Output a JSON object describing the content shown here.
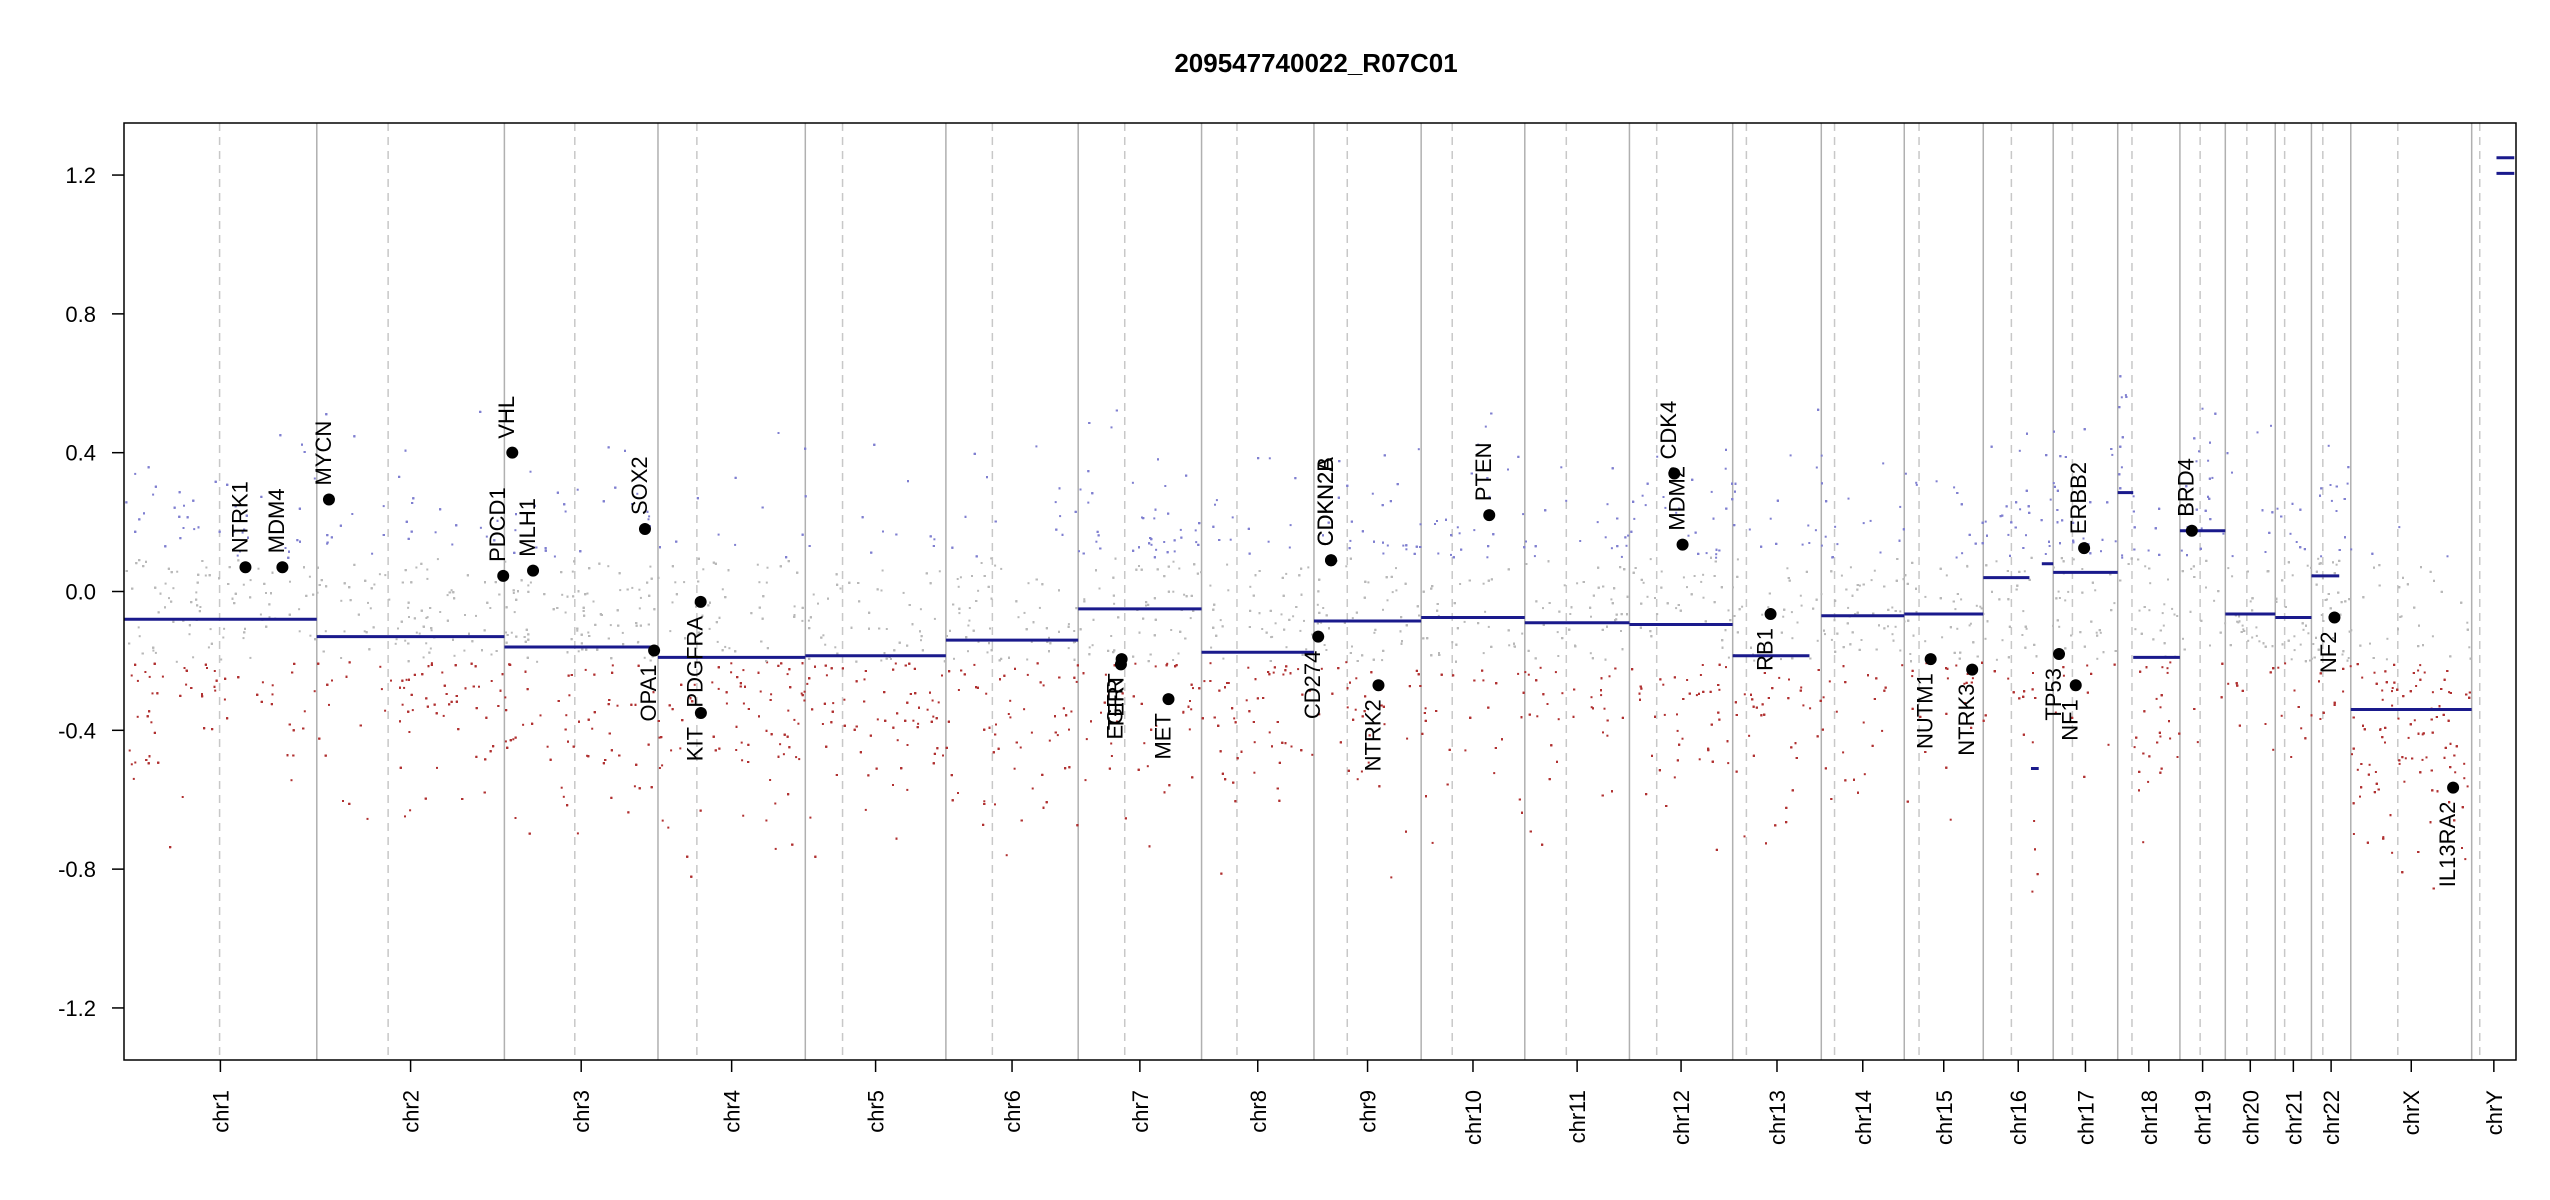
{
  "chart_data": {
    "type": "scatter",
    "title": "209547740022_R07C01",
    "xlabel": "",
    "ylabel": "",
    "ylim": [
      -1.35,
      1.35
    ],
    "yticks": [
      "-1.2",
      "-0.8",
      "-0.4",
      "0.0",
      "0.4",
      "0.8",
      "1.2"
    ],
    "grid": false,
    "colors": {
      "segment": "#1a1a8c",
      "gain_points": "#7f7fd0",
      "loss_points": "#b03030",
      "neutral_points": "#b8b8b8",
      "gene_marker": "#000000",
      "chrom_boundary": "#b0b0b0",
      "centromere": "#c8c8c8"
    },
    "chromosomes": [
      {
        "name": "chr1",
        "start": 0.0,
        "end": 248.9,
        "centromere": 123.4
      },
      {
        "name": "chr2",
        "start": 248.9,
        "end": 491.1,
        "centromere": 341.0
      },
      {
        "name": "chr3",
        "start": 491.1,
        "end": 689.4,
        "centromere": 582.0
      },
      {
        "name": "chr4",
        "start": 689.4,
        "end": 879.6,
        "centromere": 739.6
      },
      {
        "name": "chr5",
        "start": 879.6,
        "end": 1061.1,
        "centromere": 927.7
      },
      {
        "name": "chr6",
        "start": 1061.1,
        "end": 1231.9,
        "centromere": 1121.1
      },
      {
        "name": "chr7",
        "start": 1231.9,
        "end": 1391.2,
        "centromere": 1292.0
      },
      {
        "name": "chr8",
        "start": 1391.2,
        "end": 1536.3,
        "centromere": 1436.9
      },
      {
        "name": "chr9",
        "start": 1536.3,
        "end": 1674.7,
        "centromere": 1579.3
      },
      {
        "name": "chr10",
        "start": 1674.7,
        "end": 1808.5,
        "centromere": 1714.8
      },
      {
        "name": "chr11",
        "start": 1808.5,
        "end": 1943.6,
        "centromere": 1862.1
      },
      {
        "name": "chr12",
        "start": 1943.6,
        "end": 2076.9,
        "centromere": 1978.8
      },
      {
        "name": "chr13",
        "start": 2076.9,
        "end": 2191.3,
        "centromere": 2094.6
      },
      {
        "name": "chr14",
        "start": 2191.3,
        "end": 2298.4,
        "centromere": 2208.4
      },
      {
        "name": "chr15",
        "start": 2298.4,
        "end": 2400.4,
        "centromere": 2317.5
      },
      {
        "name": "chr16",
        "start": 2400.4,
        "end": 2490.7,
        "centromere": 2436.7
      },
      {
        "name": "chr17",
        "start": 2490.7,
        "end": 2574.0,
        "centromere": 2515.5
      },
      {
        "name": "chr18",
        "start": 2574.0,
        "end": 2654.3,
        "centromere": 2592.4
      },
      {
        "name": "chr19",
        "start": 2654.3,
        "end": 2712.9,
        "centromere": 2680.4
      },
      {
        "name": "chr20",
        "start": 2712.9,
        "end": 2777.4,
        "centromere": 2740.7
      },
      {
        "name": "chr21",
        "start": 2777.4,
        "end": 2824.1,
        "centromere": 2789.5
      },
      {
        "name": "chr22",
        "start": 2824.1,
        "end": 2874.9,
        "centromere": 2838.8
      },
      {
        "name": "chrX",
        "start": 2874.9,
        "end": 3031.0,
        "centromere": 2935.6
      },
      {
        "name": "chrY",
        "start": 3031.0,
        "end": 3088.2,
        "centromere": 3041.4
      }
    ],
    "segments": [
      {
        "x0": 0.0,
        "x1": 248.9,
        "y": -0.08
      },
      {
        "x0": 248.9,
        "x1": 491.1,
        "y": -0.13
      },
      {
        "x0": 491.1,
        "x1": 689.4,
        "y": -0.16
      },
      {
        "x0": 689.4,
        "x1": 879.6,
        "y": -0.19
      },
      {
        "x0": 879.6,
        "x1": 1061.1,
        "y": -0.185
      },
      {
        "x0": 1061.1,
        "x1": 1231.9,
        "y": -0.14
      },
      {
        "x0": 1231.9,
        "x1": 1391.2,
        "y": -0.05
      },
      {
        "x0": 1391.2,
        "x1": 1536.3,
        "y": -0.175
      },
      {
        "x0": 1536.3,
        "x1": 1674.7,
        "y": -0.085
      },
      {
        "x0": 1674.7,
        "x1": 1808.5,
        "y": -0.075
      },
      {
        "x0": 1808.5,
        "x1": 1943.6,
        "y": -0.09
      },
      {
        "x0": 1943.6,
        "x1": 2076.9,
        "y": -0.095
      },
      {
        "x0": 2076.9,
        "x1": 2176.0,
        "y": -0.185
      },
      {
        "x0": 2191.3,
        "x1": 2298.4,
        "y": -0.07
      },
      {
        "x0": 2298.4,
        "x1": 2400.4,
        "y": -0.065
      },
      {
        "x0": 2400.4,
        "x1": 2460.0,
        "y": 0.04
      },
      {
        "x0": 2462.0,
        "x1": 2472.0,
        "y": -0.51
      },
      {
        "x0": 2476.0,
        "x1": 2490.7,
        "y": 0.08
      },
      {
        "x0": 2490.7,
        "x1": 2574.0,
        "y": 0.055
      },
      {
        "x0": 2574.0,
        "x1": 2594.0,
        "y": 0.285
      },
      {
        "x0": 2594.0,
        "x1": 2654.3,
        "y": -0.19
      },
      {
        "x0": 2654.3,
        "x1": 2712.9,
        "y": 0.175
      },
      {
        "x0": 2712.9,
        "x1": 2777.4,
        "y": -0.065
      },
      {
        "x0": 2777.4,
        "x1": 2824.1,
        "y": -0.075
      },
      {
        "x0": 2824.1,
        "x1": 2860.0,
        "y": 0.045
      },
      {
        "x0": 2874.9,
        "x1": 3031.0,
        "y": -0.34
      },
      {
        "x0": 3063.0,
        "x1": 3086.0,
        "y": 1.205
      },
      {
        "x0": 3063.0,
        "x1": 3086.0,
        "y": 1.25
      }
    ],
    "genes": [
      {
        "name": "NTRK1",
        "x": 156.8,
        "y": 0.07
      },
      {
        "name": "MDM4",
        "x": 204.5,
        "y": 0.07
      },
      {
        "name": "MYCN",
        "x": 264.6,
        "y": 0.265
      },
      {
        "name": "PDCD1",
        "x": 489.6,
        "y": 0.045
      },
      {
        "name": "VHL",
        "x": 501.3,
        "y": 0.4
      },
      {
        "name": "MLH1",
        "x": 528.1,
        "y": 0.06
      },
      {
        "name": "SOX2",
        "x": 672.6,
        "y": 0.18
      },
      {
        "name": "OPA1",
        "x": 684.4,
        "y": -0.17
      },
      {
        "name": "KIT",
        "x": 744.8,
        "y": -0.35
      },
      {
        "name": "PDGFRA",
        "x": 744.5,
        "y": -0.03
      },
      {
        "name": "EGFR",
        "x": 1287.1,
        "y": -0.21
      },
      {
        "name": "TERT",
        "x": 1288.0,
        "y": -0.195
      },
      {
        "name": "MET",
        "x": 1348.5,
        "y": -0.31
      },
      {
        "name": "CD274",
        "x": 1541.8,
        "y": -0.13
      },
      {
        "name": "CDKN2A",
        "x": 1558.3,
        "y": 0.09
      },
      {
        "name": "CDKN2B",
        "x": 1558.4,
        "y": 0.09
      },
      {
        "name": "NTRK2",
        "x": 1619.6,
        "y": -0.27
      },
      {
        "name": "PTEN",
        "x": 1762.6,
        "y": 0.22
      },
      {
        "name": "MDM2",
        "x": 2012.2,
        "y": 0.135
      },
      {
        "name": "CDK4",
        "x": 2001.5,
        "y": 0.34
      },
      {
        "name": "RB1",
        "x": 2125.8,
        "y": -0.065
      },
      {
        "name": "NUTM1",
        "x": 2332.5,
        "y": -0.195
      },
      {
        "name": "NTRK3",
        "x": 2386.1,
        "y": -0.225
      },
      {
        "name": "TP53",
        "x": 2498.2,
        "y": -0.18
      },
      {
        "name": "NF1",
        "x": 2519.8,
        "y": -0.27
      },
      {
        "name": "ERBB2",
        "x": 2530.6,
        "y": 0.125
      },
      {
        "name": "BRD4",
        "x": 2669.7,
        "y": 0.175
      },
      {
        "name": "NF2",
        "x": 2853.8,
        "y": -0.075
      },
      {
        "name": "IL13RA2",
        "x": 3007.0,
        "y": -0.565
      }
    ]
  }
}
